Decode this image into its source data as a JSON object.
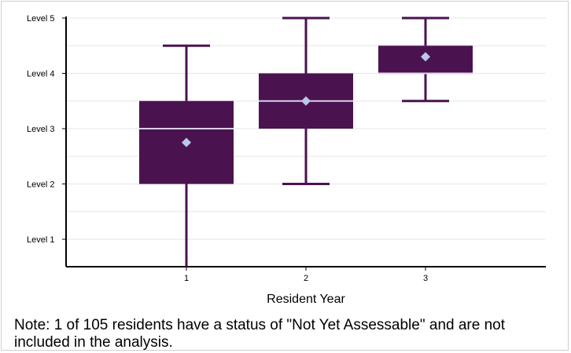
{
  "chart_data": {
    "type": "box",
    "xlabel": "Resident Year",
    "categories": [
      "1",
      "2",
      "3"
    ],
    "y_tick_labels": [
      "Level 1",
      "Level 2",
      "Level 3",
      "Level 4",
      "Level 5"
    ],
    "y_tick_values": [
      1,
      2,
      3,
      4,
      5
    ],
    "ylim": [
      0.5,
      5
    ],
    "grid": true,
    "boxes": [
      {
        "category": "1",
        "min": 0.5,
        "q1": 2.0,
        "median": 3.0,
        "q3": 3.5,
        "max": 4.5,
        "mean": 2.75
      },
      {
        "category": "2",
        "min": 2.0,
        "q1": 3.0,
        "median": 3.5,
        "q3": 4.0,
        "max": 5.0,
        "mean": 3.5
      },
      {
        "category": "3",
        "min": 3.5,
        "q1": 4.0,
        "median": 4.0,
        "q3": 4.5,
        "max": 5.0,
        "mean": 4.3
      }
    ],
    "colors": {
      "box": "#4b1250",
      "whisker": "#4b1250",
      "median": "#d9d3e6",
      "mean_marker": "#b8c8e8",
      "grid": "#e6e6e6",
      "axis": "#000000"
    }
  },
  "note": "Note: 1 of 105 residents have a status of \"Not Yet Assessable\" and are not included in the analysis."
}
